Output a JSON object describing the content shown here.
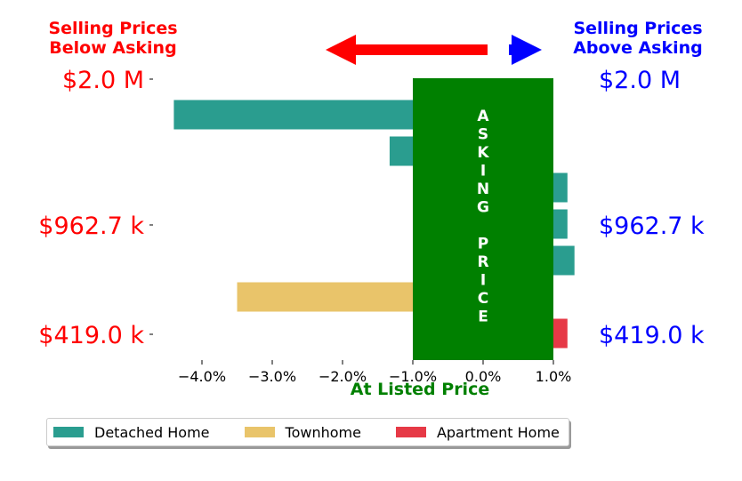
{
  "header": {
    "left_title_line1": "Selling Prices",
    "left_title_line2": "Below Asking",
    "right_title_line1": "Selling Prices",
    "right_title_line2": "Above Asking"
  },
  "center_label": "ASKING PRICE",
  "colors": {
    "below": "#ff0000",
    "above": "#0000ff",
    "asking_band": "#008000",
    "detached": "#2a9d8f",
    "townhome": "#e9c46a",
    "apartment": "#e63946"
  },
  "chart_data": {
    "type": "bar",
    "orientation": "horizontal",
    "xlabel": "At Listed Price",
    "xlim": [
      -5.0,
      1.5
    ],
    "xticks": [
      "−4.0%",
      "−3.0%",
      "−2.0%",
      "−1.0%",
      "0.0%",
      "1.0%"
    ],
    "xtick_values": [
      -4.0,
      -3.0,
      -2.0,
      -1.0,
      0.0,
      1.0
    ],
    "y_tick_labels": [
      "$2.0 M",
      "$962.7 k",
      "$419.0 k"
    ],
    "right_tick_labels": [
      "$2.0 M",
      "$962.7 k",
      "$419.0 k"
    ],
    "asking_band_range": [
      -1.0,
      1.0
    ],
    "bars": [
      {
        "series": "Detached Home",
        "value": -4.4
      },
      {
        "series": "Detached Home",
        "value": -1.33
      },
      {
        "series": "Detached Home",
        "value": 1.2
      },
      {
        "series": "Detached Home",
        "value": 1.2
      },
      {
        "series": "Detached Home",
        "value": 1.3
      },
      {
        "series": "Townhome",
        "value": -3.5
      },
      {
        "series": "Apartment Home",
        "value": 1.2
      }
    ],
    "legend": [
      "Detached Home",
      "Townhome",
      "Apartment Home"
    ]
  }
}
